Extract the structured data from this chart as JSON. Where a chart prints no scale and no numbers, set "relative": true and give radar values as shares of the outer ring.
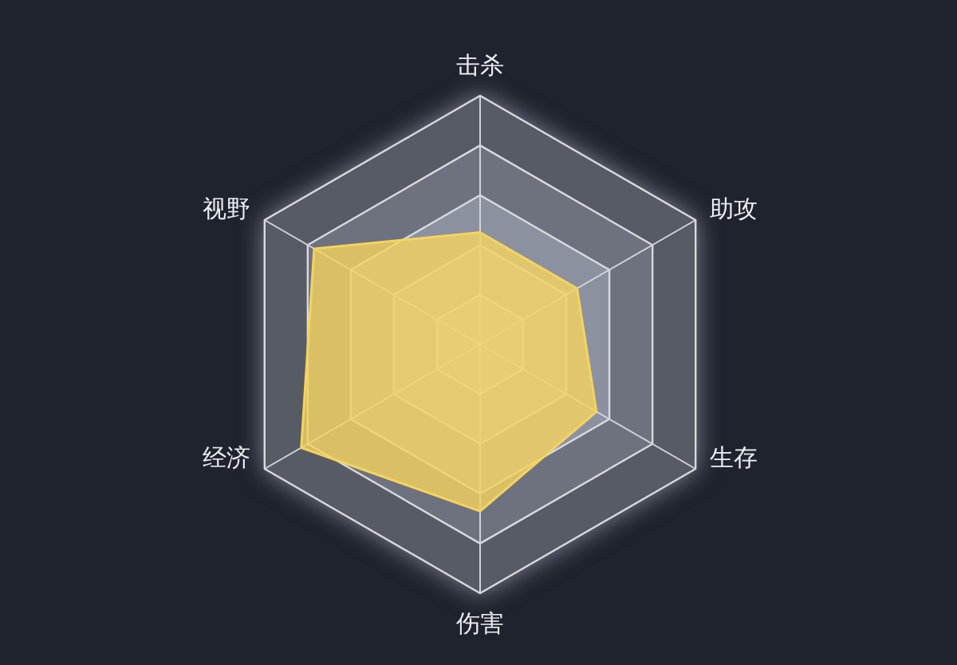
{
  "chart_data": {
    "type": "radar",
    "categories": [
      "击杀",
      "助攻",
      "生存",
      "伤害",
      "经济",
      "视野"
    ],
    "relative": true,
    "grid": true,
    "series": [
      {
        "color": "#f5d35f",
        "values": [
          0.45,
          0.45,
          0.54,
          0.67,
          0.83,
          0.77
        ]
      }
    ]
  }
}
